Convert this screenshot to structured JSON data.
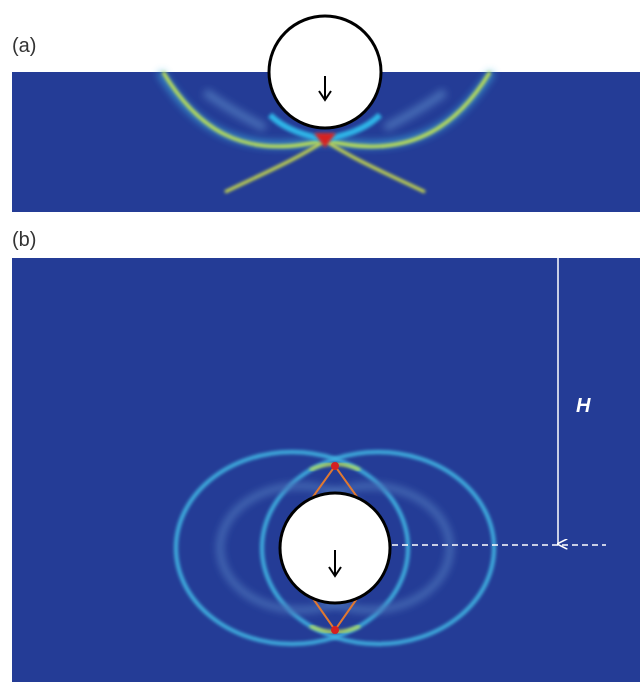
{
  "panels": [
    {
      "label": "(a)"
    },
    {
      "label": "(b)",
      "dimension_label": "H"
    }
  ]
}
